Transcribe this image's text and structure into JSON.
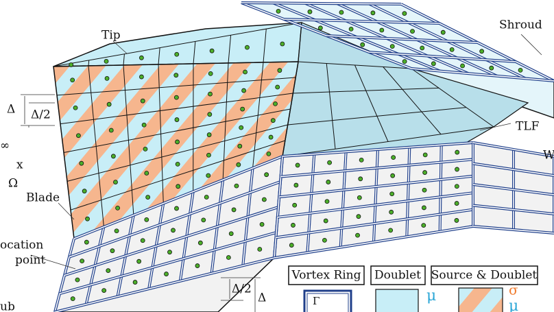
{
  "labels": {
    "tip": "Tip",
    "shroud": "Shroud",
    "delta_left": "Δ",
    "half_delta_left": "Δ/2",
    "infinity": "∞",
    "x_axis": "x",
    "omega": "Ω",
    "blade": "Blade",
    "collocation_line1": "ocation",
    "collocation_line2": "point",
    "tlf": "TLF",
    "wake": "W",
    "hub": "ub",
    "half_delta_bottom": "Δ/2",
    "delta_bottom": "Δ"
  },
  "legend": {
    "vortex_ring": {
      "title": "Vortex Ring",
      "symbol": "Γ"
    },
    "doublet": {
      "title": "Doublet",
      "symbol": "μ"
    },
    "source_doublet": {
      "title": "Source & Doublet",
      "symbol_source": "σ",
      "symbol_doublet": "μ"
    }
  }
}
